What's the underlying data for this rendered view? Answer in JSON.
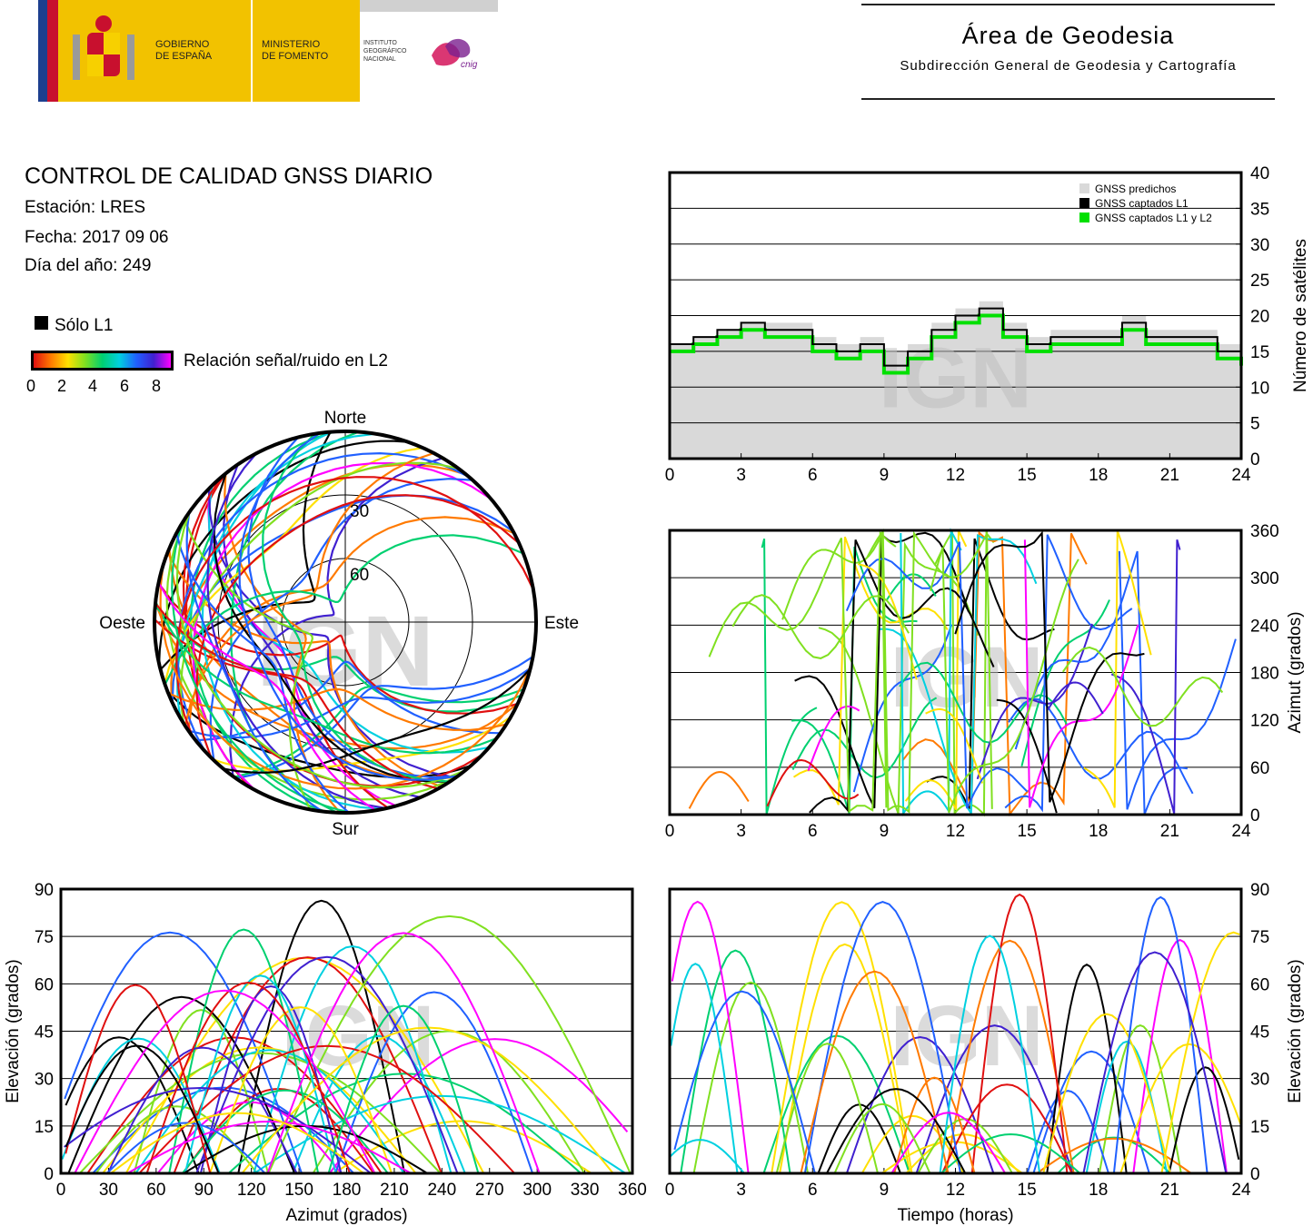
{
  "header": {
    "gobierno": [
      "GOBIERNO",
      "DE ESPAÑA"
    ],
    "ministerio": [
      "MINISTERIO",
      "DE FOMENTO"
    ],
    "instituto": [
      "INSTITUTO",
      "GEOGRÁFICO",
      "NACIONAL"
    ],
    "cnig_logo": "cnig",
    "area_title": "Área de Geodesia",
    "area_subtitle": "Subdirección General de Geodesia y Cartografía"
  },
  "report": {
    "title": "CONTROL DE CALIDAD GNSS DIARIO",
    "station": "Estación: LRES",
    "date": "Fecha: 2017 09 06",
    "doy": "Día del año: 249",
    "only_l1": "Sólo L1",
    "snr_label": "Relación señal/ruido en L2",
    "snr_ticks": [
      "0",
      "2",
      "4",
      "6",
      "8"
    ],
    "watermark": "IGN"
  },
  "colors": {
    "predicted": "#d9d9d9",
    "l1": "#000000",
    "l1l2": "#00e000",
    "snr_scale": [
      "#e01010",
      "#ff7a00",
      "#ffe000",
      "#80e020",
      "#00d070",
      "#00d0e0",
      "#2060ff",
      "#4020d0",
      "#ff00ff"
    ]
  },
  "chart_data": [
    {
      "type": "area",
      "id": "sats",
      "legend": [
        "GNSS predichos",
        "GNSS captados L1",
        "GNSS captados L1 y L2"
      ],
      "ylabel": "Número de satélites",
      "xticks": [
        "0",
        "3",
        "6",
        "9",
        "12",
        "15",
        "18",
        "21",
        "24"
      ],
      "yticks": [
        "0",
        "5",
        "10",
        "15",
        "20",
        "25",
        "30",
        "35",
        "40"
      ],
      "xlim": [
        0,
        24
      ],
      "ylim": [
        0,
        40
      ],
      "x": [
        0,
        1,
        2,
        3,
        4,
        5,
        6,
        7,
        8,
        9,
        10,
        11,
        12,
        13,
        14,
        15,
        16,
        17,
        18,
        19,
        20,
        21,
        22,
        23,
        24
      ],
      "series": [
        {
          "name": "GNSS predichos",
          "values": [
            16,
            17,
            18,
            19,
            19,
            19,
            17,
            16,
            17,
            15,
            16,
            19,
            21,
            22,
            19,
            17,
            18,
            18,
            18,
            20,
            18,
            18,
            18,
            16,
            15
          ]
        },
        {
          "name": "GNSS captados L1",
          "values": [
            16,
            17,
            18,
            19,
            18,
            18,
            16,
            15,
            16,
            13,
            15,
            18,
            20,
            21,
            18,
            16,
            17,
            17,
            17,
            19,
            17,
            17,
            17,
            15,
            14
          ]
        },
        {
          "name": "GNSS captados L1 y L2",
          "values": [
            15,
            16,
            17,
            18,
            17,
            17,
            15,
            14,
            15,
            12,
            14,
            17,
            19,
            20,
            17,
            15,
            16,
            16,
            16,
            18,
            16,
            16,
            16,
            14,
            13
          ]
        }
      ]
    },
    {
      "type": "scatter",
      "id": "polar",
      "labels": {
        "north": "Norte",
        "south": "Sur",
        "east": "Este",
        "west": "Oeste"
      },
      "rings": [
        "30",
        "60"
      ]
    },
    {
      "type": "scatter",
      "id": "azimuth_time",
      "ylabel": "Azimut (grados)",
      "xticks": [
        "0",
        "3",
        "6",
        "9",
        "12",
        "15",
        "18",
        "21",
        "24"
      ],
      "yticks": [
        "0",
        "60",
        "120",
        "180",
        "240",
        "300",
        "360"
      ],
      "xlim": [
        0,
        24
      ],
      "ylim": [
        0,
        360
      ]
    },
    {
      "type": "scatter",
      "id": "elev_azimuth",
      "xlabel": "Azimut (grados)",
      "ylabel": "Elevación (grados)",
      "xticks": [
        "0",
        "30",
        "60",
        "90",
        "120",
        "150",
        "180",
        "210",
        "240",
        "270",
        "300",
        "330",
        "360"
      ],
      "yticks": [
        "0",
        "15",
        "30",
        "45",
        "60",
        "75",
        "90"
      ],
      "xlim": [
        0,
        360
      ],
      "ylim": [
        0,
        90
      ]
    },
    {
      "type": "scatter",
      "id": "elev_time",
      "xlabel": "Tiempo (horas)",
      "ylabel": "Elevación (grados)",
      "xticks": [
        "0",
        "3",
        "6",
        "9",
        "12",
        "15",
        "18",
        "21",
        "24"
      ],
      "yticks": [
        "0",
        "15",
        "30",
        "45",
        "60",
        "75",
        "90"
      ],
      "xlim": [
        0,
        24
      ],
      "ylim": [
        0,
        90
      ]
    }
  ]
}
